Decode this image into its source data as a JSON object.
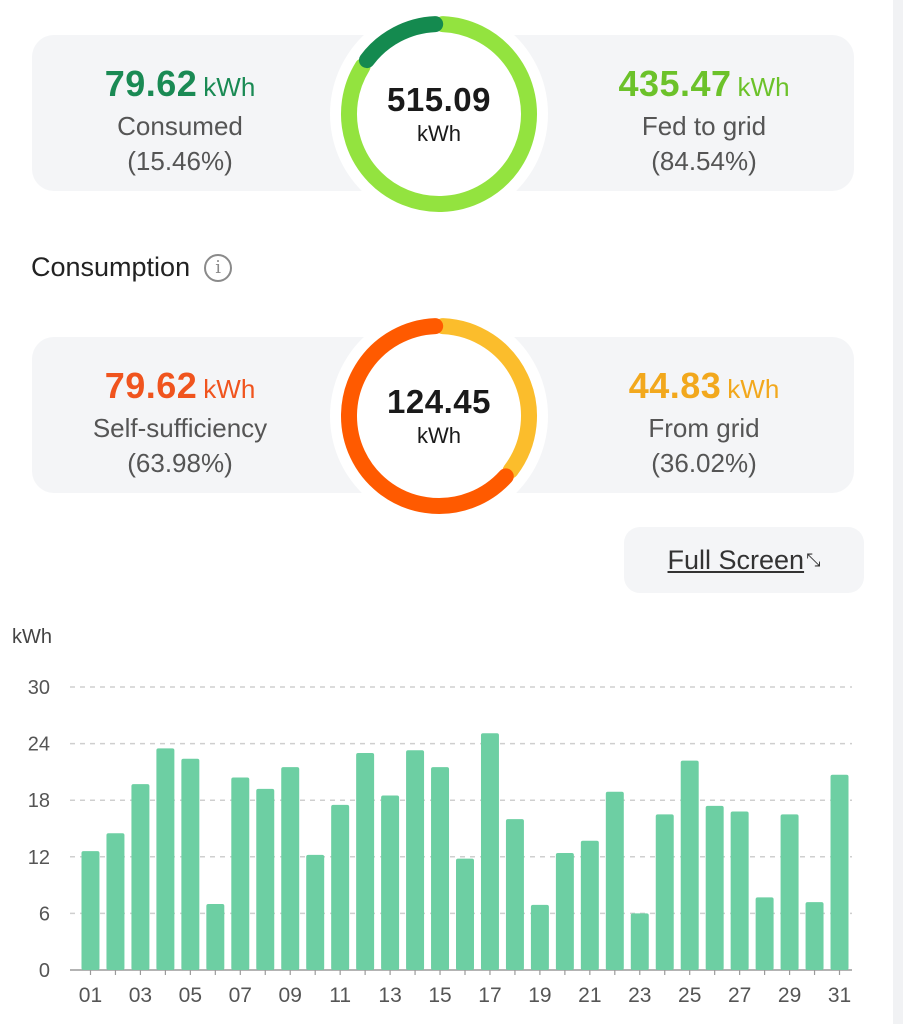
{
  "production_summary": {
    "consumed": {
      "value": "79.62",
      "unit": "kWh",
      "label": "Consumed",
      "percent": "(15.46%)",
      "color": "#1a8a54"
    },
    "total": {
      "value": "515.09",
      "unit": "kWh"
    },
    "fed_to_grid": {
      "value": "435.47",
      "unit": "kWh",
      "label": "Fed to grid",
      "percent": "(84.54%)",
      "color": "#6cc22a"
    },
    "ring_colors": {
      "consumed": "#148a4f",
      "fed": "#93e33f"
    },
    "ring_split": [
      0.1546,
      0.8454
    ]
  },
  "consumption_section": {
    "title": "Consumption",
    "info_icon": "info-icon"
  },
  "consumption_summary": {
    "self_sufficiency": {
      "value": "79.62",
      "unit": "kWh",
      "label": "Self-sufficiency",
      "percent": "(63.98%)",
      "color": "#f0541e"
    },
    "total": {
      "value": "124.45",
      "unit": "kWh"
    },
    "from_grid": {
      "value": "44.83",
      "unit": "kWh",
      "label": "From grid",
      "percent": "(36.02%)",
      "color": "#f2a81d"
    },
    "ring_colors": {
      "self": "#ff5a00",
      "grid": "#fbbd2c"
    },
    "ring_split": [
      0.6398,
      0.3602
    ]
  },
  "full_screen_button": {
    "label": "Full Screen",
    "icon": "expand-icon"
  },
  "chart_data": {
    "type": "bar",
    "ylabel": "kWh",
    "ylim": [
      0,
      30
    ],
    "yticks": [
      "0",
      "6",
      "12",
      "18",
      "24",
      "30"
    ],
    "grid": true,
    "bar_color": "#6dcfa3",
    "categories": [
      "01",
      "02",
      "03",
      "04",
      "05",
      "06",
      "07",
      "08",
      "09",
      "10",
      "11",
      "12",
      "13",
      "14",
      "15",
      "16",
      "17",
      "18",
      "19",
      "20",
      "21",
      "22",
      "23",
      "24",
      "25",
      "26",
      "27",
      "28",
      "29",
      "30",
      "31"
    ],
    "xtick_labels": [
      "01",
      "03",
      "05",
      "07",
      "09",
      "11",
      "13",
      "15",
      "17",
      "19",
      "21",
      "23",
      "25",
      "27",
      "29",
      "31"
    ],
    "values": [
      12.6,
      14.5,
      19.7,
      23.5,
      22.4,
      7.0,
      20.4,
      19.2,
      21.5,
      12.2,
      17.5,
      23.0,
      18.5,
      23.3,
      21.5,
      11.8,
      25.1,
      16.0,
      6.9,
      12.4,
      13.7,
      18.9,
      6.0,
      16.5,
      22.2,
      17.4,
      16.8,
      7.7,
      16.5,
      7.2,
      20.7
    ]
  }
}
